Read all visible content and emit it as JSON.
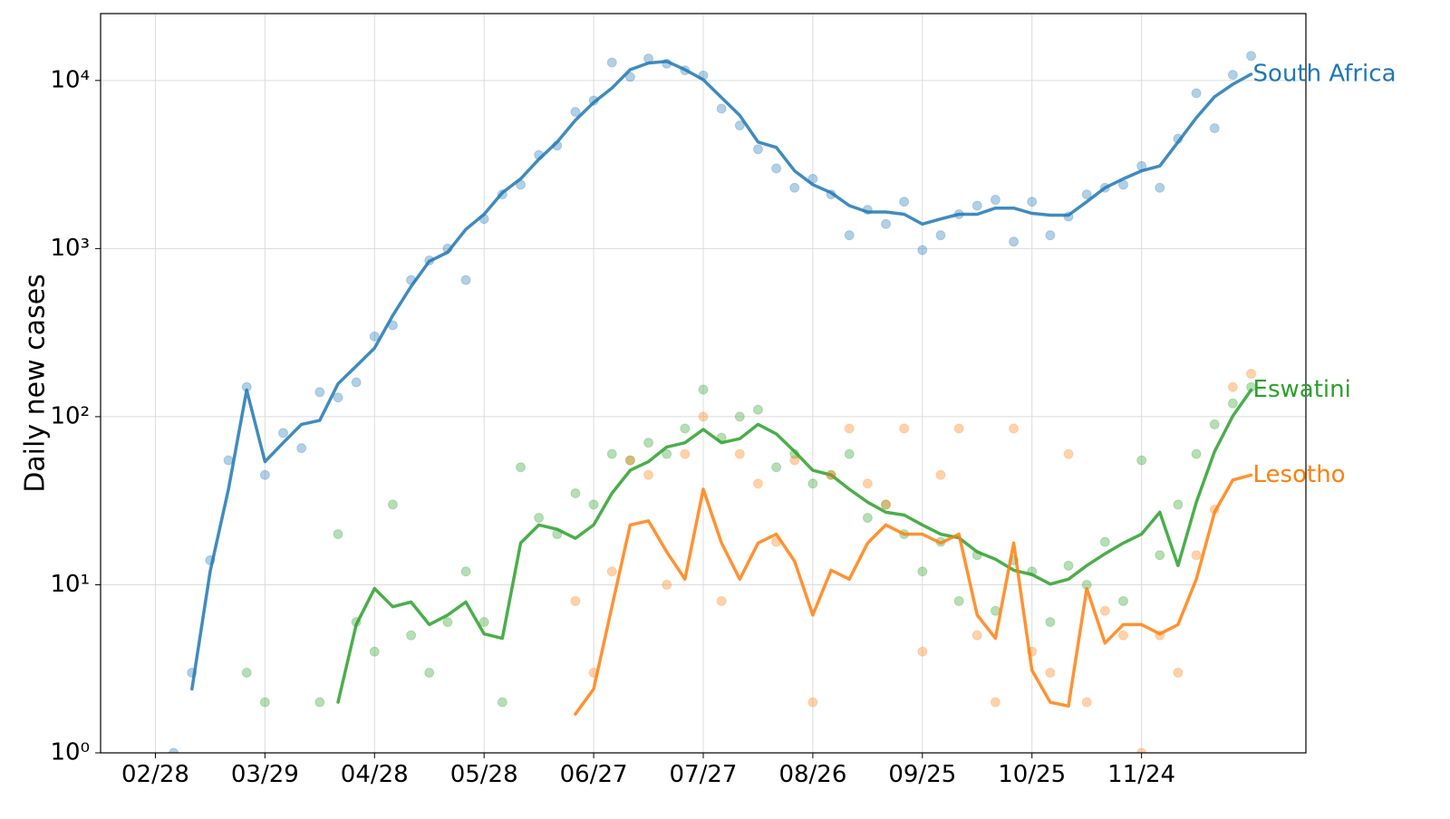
{
  "chart_data": {
    "type": "line",
    "ylabel": "Daily new cases",
    "log_scale": true,
    "grid": true,
    "x": [
      "02/28",
      "03/04",
      "03/09",
      "03/14",
      "03/19",
      "03/24",
      "03/29",
      "04/03",
      "04/08",
      "04/13",
      "04/18",
      "04/23",
      "04/28",
      "05/03",
      "05/08",
      "05/13",
      "05/18",
      "05/23",
      "05/28",
      "06/02",
      "06/07",
      "06/12",
      "06/17",
      "06/22",
      "06/27",
      "07/02",
      "07/07",
      "07/12",
      "07/17",
      "07/22",
      "07/27",
      "08/01",
      "08/06",
      "08/11",
      "08/16",
      "08/21",
      "08/26",
      "08/31",
      "09/05",
      "09/10",
      "09/15",
      "09/20",
      "09/25",
      "09/30",
      "10/05",
      "10/10",
      "10/15",
      "10/20",
      "10/25",
      "10/30",
      "11/04",
      "11/09",
      "11/14",
      "11/19",
      "11/24",
      "11/29",
      "12/04",
      "12/09",
      "12/14",
      "12/19",
      "12/24"
    ],
    "xlim": [
      "02/13",
      "01/08"
    ],
    "xticks": [
      "02/28",
      "03/29",
      "04/28",
      "05/28",
      "06/27",
      "07/27",
      "08/26",
      "09/25",
      "10/25",
      "11/24"
    ],
    "ylim": [
      1,
      25000
    ],
    "yticks": [
      {
        "value": 1,
        "label": "10⁰"
      },
      {
        "value": 10,
        "label": "10¹"
      },
      {
        "value": 100,
        "label": "10²"
      },
      {
        "value": 1000,
        "label": "10³"
      },
      {
        "value": 10000,
        "label": "10⁴"
      }
    ],
    "series": [
      {
        "name": "South Africa",
        "color": "#1f77b4",
        "values": [
          null,
          null,
          2.4,
          12,
          37,
          144,
          54,
          70,
          90,
          95,
          157,
          200,
          256,
          400,
          595,
          840,
          950,
          1300,
          1600,
          2150,
          2600,
          3400,
          4300,
          5800,
          7400,
          9000,
          11600,
          12700,
          13000,
          11600,
          10100,
          7900,
          6200,
          4300,
          4000,
          2900,
          2400,
          2150,
          1800,
          1650,
          1650,
          1600,
          1400,
          1500,
          1600,
          1600,
          1740,
          1740,
          1620,
          1580,
          1580,
          1900,
          2300,
          2600,
          2900,
          3100,
          4300,
          6000,
          8000,
          9500,
          10900
        ],
        "daily": [
          null,
          1,
          3,
          14,
          55,
          150,
          45,
          80,
          65,
          140,
          130,
          160,
          300,
          350,
          650,
          850,
          1000,
          650,
          1500,
          2100,
          2400,
          3600,
          4100,
          6500,
          7600,
          12800,
          10500,
          13500,
          12600,
          11500,
          10700,
          6800,
          5400,
          3900,
          3000,
          2300,
          2600,
          2100,
          1200,
          1700,
          1400,
          1900,
          980,
          1200,
          1600,
          1800,
          1950,
          1100,
          1900,
          1200,
          1550,
          2100,
          2300,
          2400,
          3100,
          2300,
          4500,
          8400,
          5200,
          10800,
          14000
        ]
      },
      {
        "name": "Eswatini",
        "color": "#2ca02c",
        "values": [
          null,
          null,
          null,
          null,
          null,
          1.1,
          null,
          null,
          null,
          null,
          2.0,
          5.8,
          9.5,
          7.4,
          7.9,
          5.8,
          6.6,
          7.9,
          5.1,
          4.8,
          17.7,
          22.7,
          21.4,
          18.9,
          22.7,
          35,
          48,
          54,
          66,
          70,
          84,
          70,
          74,
          90,
          79,
          62,
          48,
          45,
          37,
          31,
          27,
          26,
          22.7,
          20,
          19,
          15.7,
          14.2,
          12.2,
          11.5,
          10.1,
          10.8,
          13,
          15.3,
          17.7,
          20,
          27,
          13,
          31,
          62,
          101,
          144
        ],
        "daily": [
          null,
          null,
          null,
          null,
          null,
          3,
          2,
          null,
          null,
          2,
          20,
          6,
          4,
          30,
          5,
          3,
          6,
          12,
          6,
          2,
          50,
          25,
          20,
          35,
          30,
          60,
          55,
          70,
          60,
          85,
          145,
          75,
          100,
          110,
          50,
          60,
          40,
          45,
          60,
          25,
          30,
          20,
          12,
          18,
          8,
          15,
          7,
          14,
          12,
          6,
          13,
          10,
          18,
          8,
          55,
          15,
          30,
          60,
          90,
          120,
          150
        ]
      },
      {
        "name": "Lesotho",
        "color": "#ff7f0e",
        "values": [
          null,
          null,
          null,
          null,
          null,
          null,
          null,
          null,
          null,
          null,
          null,
          null,
          null,
          null,
          null,
          null,
          null,
          null,
          null,
          null,
          null,
          null,
          null,
          1.7,
          2.4,
          7.4,
          22.7,
          24,
          15.7,
          10.8,
          37,
          17.7,
          10.8,
          17.7,
          20,
          13.8,
          6.6,
          12.2,
          10.8,
          17.7,
          22.7,
          20,
          20,
          17.7,
          20,
          6.6,
          4.8,
          17.7,
          3.1,
          2.0,
          1.9,
          9.5,
          4.5,
          5.8,
          5.8,
          5.1,
          5.8,
          10.8,
          27,
          42,
          45
        ],
        "daily": [
          null,
          null,
          null,
          null,
          null,
          null,
          null,
          null,
          null,
          null,
          null,
          null,
          null,
          null,
          null,
          null,
          null,
          null,
          null,
          null,
          null,
          null,
          null,
          8,
          3,
          12,
          55,
          45,
          10,
          60,
          100,
          8,
          60,
          40,
          18,
          55,
          2,
          45,
          85,
          40,
          30,
          85,
          4,
          45,
          85,
          5,
          2,
          85,
          4,
          3,
          60,
          2,
          7,
          5,
          1,
          5,
          3,
          15,
          28,
          150,
          180
        ]
      }
    ]
  }
}
